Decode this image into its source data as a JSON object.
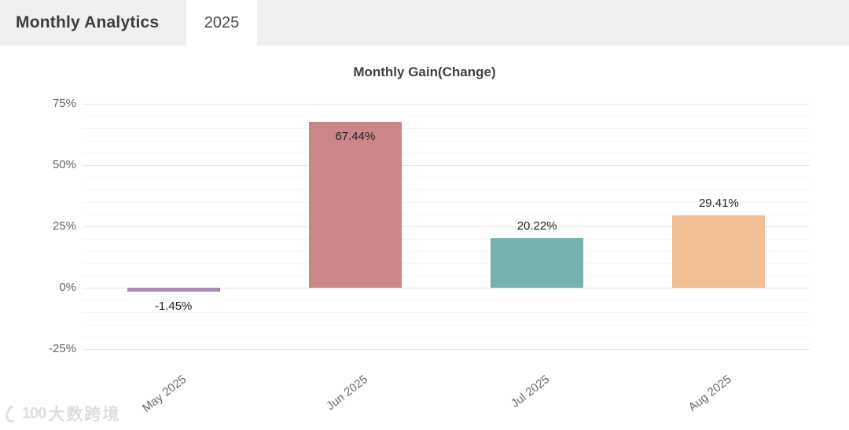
{
  "header": {
    "title": "Monthly Analytics",
    "tab": "2025"
  },
  "chart_data": {
    "type": "bar",
    "title": "Monthly Gain(Change)",
    "categories": [
      "May 2025",
      "Jun 2025",
      "Jul 2025",
      "Aug 2025"
    ],
    "values": [
      -1.45,
      67.44,
      20.22,
      29.41
    ],
    "data_labels": [
      "-1.45%",
      "67.44%",
      "20.22%",
      "29.41%"
    ],
    "label_positions": [
      "below",
      "inside-top",
      "above",
      "above"
    ],
    "bar_colors": [
      "#a98bb6",
      "#cc8687",
      "#75b1af",
      "#f1c094"
    ],
    "xlabel": "",
    "ylabel": "",
    "ylim": [
      -30,
      80
    ],
    "y_ticks": [
      {
        "value": 75,
        "label": "75%"
      },
      {
        "value": 50,
        "label": "50%"
      },
      {
        "value": 25,
        "label": "25%"
      },
      {
        "value": 0,
        "label": "0%"
      },
      {
        "value": -25,
        "label": "-25%"
      }
    ],
    "grid": {
      "shown": true,
      "major_step": 25,
      "minor_step": 5,
      "major_color": "#e5e5e5",
      "minor_color": "#f5f5f5"
    },
    "x_label_rotation_deg": -38,
    "legend": null
  },
  "watermark": {
    "logo": "100",
    "text": "大数跨境"
  }
}
